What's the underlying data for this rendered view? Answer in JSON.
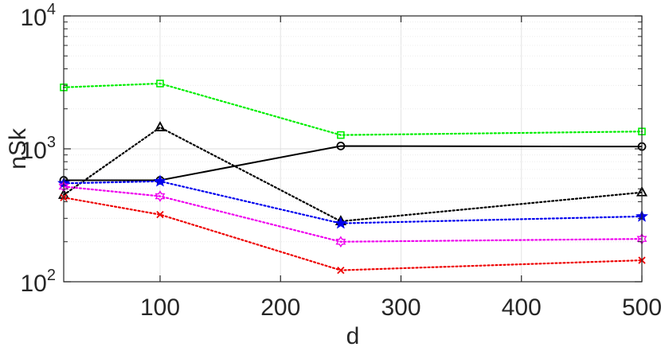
{
  "chart_data": {
    "type": "line",
    "xlabel": "d",
    "ylabel": "nSk",
    "yscale": "log",
    "xlim": [
      20,
      500
    ],
    "ylim": [
      100,
      10000
    ],
    "grid": "on (major and minor)",
    "x_ticks": [
      {
        "value": 100,
        "label": "100"
      },
      {
        "value": 200,
        "label": "200"
      },
      {
        "value": 300,
        "label": "300"
      },
      {
        "value": 400,
        "label": "400"
      },
      {
        "value": 500,
        "label": "500"
      }
    ],
    "y_ticks": [
      {
        "value": 100,
        "base": "10",
        "exp": "2"
      },
      {
        "value": 1000,
        "base": "10",
        "exp": "3"
      },
      {
        "value": 10000,
        "base": "10",
        "exp": "4"
      }
    ],
    "x": [
      20,
      100,
      250,
      500
    ],
    "series": [
      {
        "color": "#00ee00",
        "line": "dotted",
        "marker": "square",
        "values": [
          2900,
          3100,
          1270,
          1350
        ]
      },
      {
        "color": "#000000",
        "line": "dotted",
        "marker": "triangle",
        "values": [
          450,
          1450,
          285,
          470
        ]
      },
      {
        "color": "#000000",
        "line": "solid",
        "marker": "circle",
        "values": [
          580,
          580,
          1050,
          1040
        ]
      },
      {
        "color": "#0000ee",
        "line": "dotted",
        "marker": "star",
        "values": [
          550,
          570,
          275,
          310
        ]
      },
      {
        "color": "#ee00ee",
        "line": "dotted",
        "marker": "hexagram",
        "values": [
          520,
          440,
          200,
          210
        ]
      },
      {
        "color": "#ee0000",
        "line": "dotted",
        "marker": "x",
        "values": [
          430,
          320,
          122,
          145
        ]
      }
    ]
  }
}
